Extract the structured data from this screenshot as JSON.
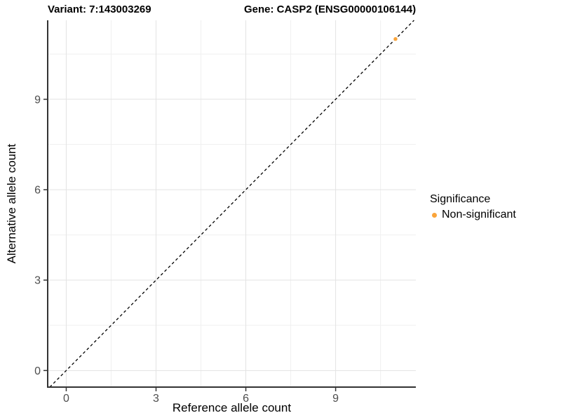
{
  "chart_data": {
    "type": "scatter",
    "titles": {
      "left": "Variant: 7:143003269",
      "right": "Gene: CASP2 (ENSG00000106144)"
    },
    "xlabel": "Reference allele count",
    "ylabel": "Alternative allele count",
    "x_ticks": [
      0,
      3,
      6,
      9
    ],
    "y_ticks": [
      0,
      3,
      6,
      9
    ],
    "xlim": [
      -0.62,
      11.68
    ],
    "ylim": [
      -0.55,
      11.62
    ],
    "grid": true,
    "series": [
      {
        "name": "Non-significant",
        "color": "#FAA43A",
        "values": [
          [
            11,
            11
          ]
        ]
      }
    ],
    "identity_line": {
      "slope": 1,
      "intercept": 0,
      "style": "dashed",
      "color": "#000000"
    },
    "legend": {
      "title": "Significance",
      "position": "right",
      "items": [
        {
          "label": "Non-significant",
          "color": "#FAA43A"
        }
      ]
    }
  },
  "colors": {
    "background": "#FFFFFF",
    "grid_major": "#E3E3E3",
    "grid_minor": "#F0F0F0",
    "axis_line": "#333333",
    "tick_mark": "#333333",
    "tick_label": "#4D4D4D",
    "text": "#000000"
  }
}
